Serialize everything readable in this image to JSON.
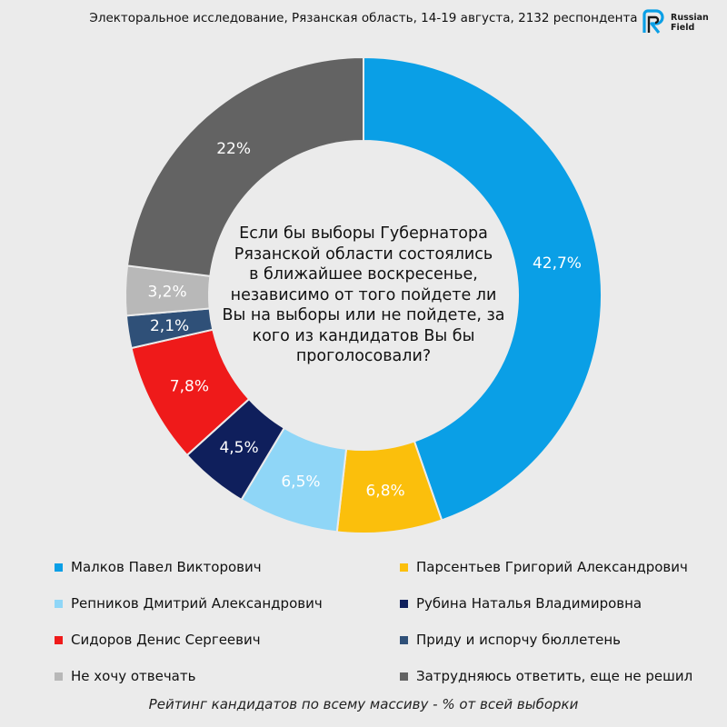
{
  "header": {
    "title": "Электоральное исследование, Рязанская область, 14-19 августа, 2132 респондента"
  },
  "logo": {
    "text_line1": "Russian",
    "text_line2": "Field",
    "icon": "russian-field-logo-icon"
  },
  "chart_data": {
    "type": "pie",
    "style": "donut",
    "center_text": [
      "Если бы выборы Губернатора",
      "Рязанской области состоялись",
      "в ближайшее воскресенье,",
      "независимо от того пойдете ли",
      "Вы на выборы или не пойдете, за",
      "кого из кандидатов Вы бы",
      "проголосовали?"
    ],
    "slices": [
      {
        "label": "Малков Павел Викторович",
        "value": 42.7,
        "value_label": "42,7%",
        "color": "#0a9fe6"
      },
      {
        "label": "Парсентьев Григорий Александрович",
        "value": 6.8,
        "value_label": "6,8%",
        "color": "#fbbf0c"
      },
      {
        "label": "Репников Дмитрий Александрович",
        "value": 6.5,
        "value_label": "6,5%",
        "color": "#8fd6f7"
      },
      {
        "label": "Рубина Наталья Владимировна",
        "value": 4.5,
        "value_label": "4,5%",
        "color": "#0f1f5c"
      },
      {
        "label": "Сидоров Денис Сергеевич",
        "value": 7.8,
        "value_label": "7,8%",
        "color": "#ef1a1a"
      },
      {
        "label": "Приду и испорчу бюллетень",
        "value": 2.1,
        "value_label": "2,1%",
        "color": "#2f5078"
      },
      {
        "label": "Не хочу отвечать",
        "value": 3.2,
        "value_label": "3,2%",
        "color": "#b8b8b8"
      },
      {
        "label": "Затрудняюсь ответить, еще не решил",
        "value": 22,
        "value_label": "22%",
        "color": "#636363"
      }
    ],
    "legend_placement": "bottom"
  },
  "footer": {
    "note": "Рейтинг кандидатов по всему массиву - % от всей выборки"
  }
}
